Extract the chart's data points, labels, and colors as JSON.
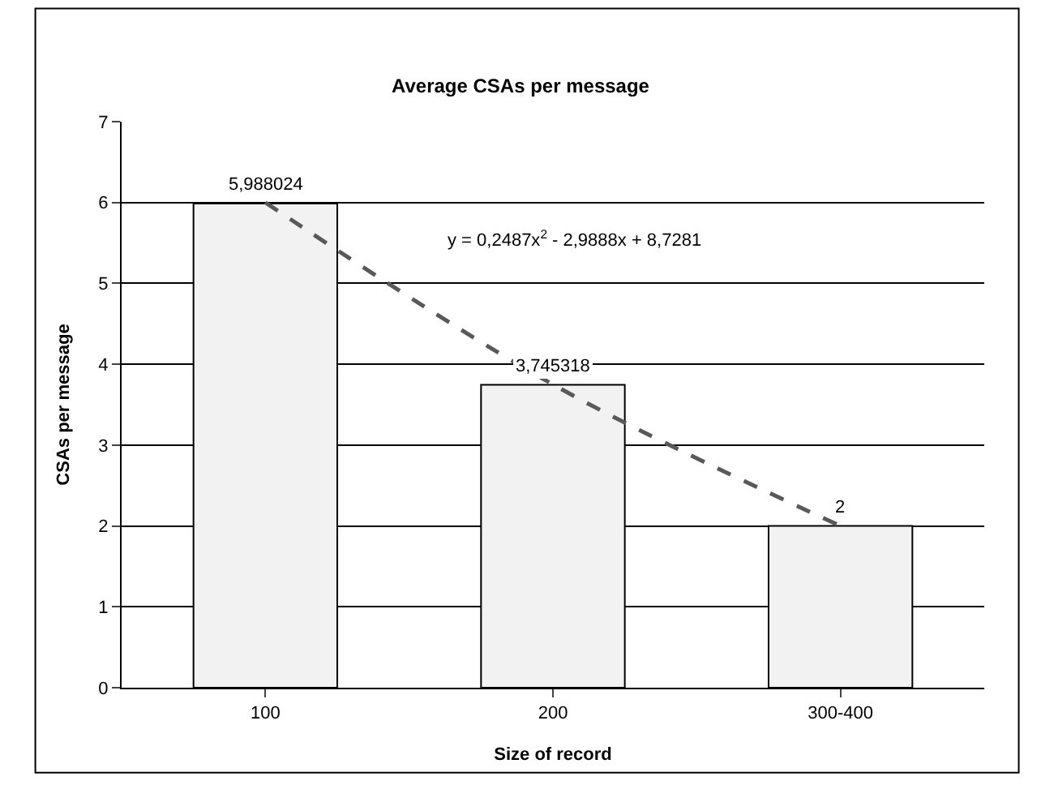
{
  "chart_data": {
    "type": "bar",
    "title": "Average CSAs per message",
    "xlabel": "Size of record",
    "ylabel": "CSAs per message",
    "categories": [
      "100",
      "200",
      "300-400"
    ],
    "series": [
      {
        "color": "#f2f2f2",
        "values": [
          5.988024,
          3.745318,
          2
        ],
        "value_labels": [
          "5,988024",
          "3,745318",
          "2"
        ]
      },
      {
        "type": "line",
        "color": "#595959",
        "x": [
          "100",
          "200",
          "300-400"
        ],
        "values": [
          6.0,
          3.75,
          2.0
        ],
        "line_style": "dashed",
        "marker": "none"
      }
    ],
    "annotations": [
      "y = 0,2487x$^{2}$ - 2,9888x + 8,7281"
    ],
    "ylim": [
      0,
      7
    ],
    "yticks": [
      0,
      1,
      2,
      3,
      4,
      5,
      6,
      7
    ],
    "grid": "y"
  }
}
